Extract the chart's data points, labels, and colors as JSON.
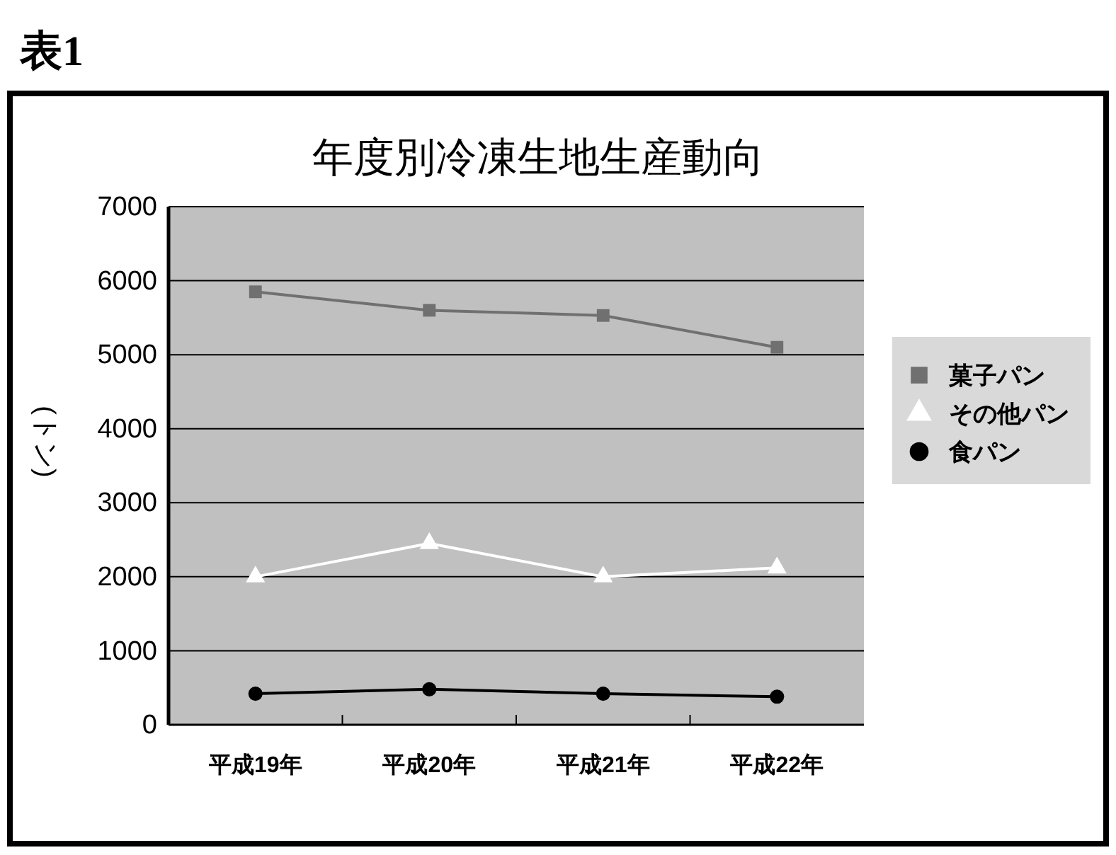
{
  "chart_data": {
    "type": "line",
    "title": "年度別冷凍生地生産動向",
    "ylabel": "(トン)",
    "annotations": [
      "表1"
    ],
    "categories": [
      "平成19年",
      "平成20年",
      "平成21年",
      "平成22年"
    ],
    "series": [
      {
        "name": "菓子パン",
        "color": "#707070",
        "marker": "square",
        "values": [
          5850,
          5600,
          5530,
          5100
        ]
      },
      {
        "name": "その他パン",
        "color": "#ffffff",
        "marker": "triangle",
        "values": [
          2000,
          2450,
          2000,
          2120
        ]
      },
      {
        "name": "食パン",
        "color": "#000000",
        "marker": "circle",
        "values": [
          420,
          480,
          420,
          380
        ]
      }
    ],
    "ylim": [
      0,
      7000
    ],
    "yticks": [
      0,
      1000,
      2000,
      3000,
      4000,
      5000,
      6000,
      7000
    ],
    "grid": "y",
    "legend": "right"
  }
}
